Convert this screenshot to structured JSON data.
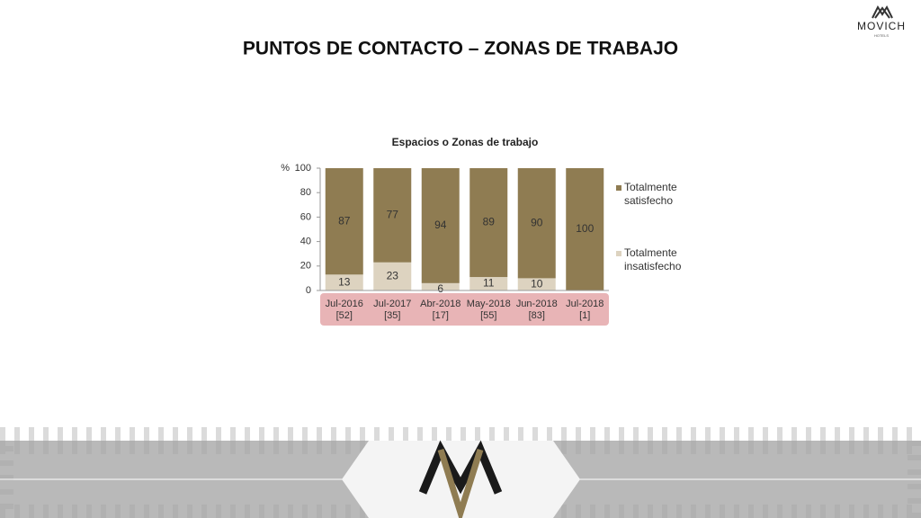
{
  "header": {
    "title": "PUNTOS DE CONTACTO – ZONAS DE TRABAJO",
    "logo": "MOVICH",
    "logo_sub": "HOTELS"
  },
  "chart_data": {
    "type": "bar",
    "stacked": true,
    "title": "Espacios o Zonas de trabajo",
    "ylabel": "%",
    "categories": [
      "Jul-2016",
      "Jul-2017",
      "Abr-2018",
      "May-2018",
      "Jun-2018",
      "Jul-2018"
    ],
    "category_counts": [
      "[52]",
      "[35]",
      "[17]",
      "[55]",
      "[83]",
      "[1]"
    ],
    "series": [
      {
        "name": "Totalmente satisfecho",
        "color": "#8f7c52",
        "values": [
          87,
          77,
          94,
          89,
          90,
          100
        ]
      },
      {
        "name": "Totalmente insatisfecho",
        "color": "#ddd3c0",
        "values": [
          13,
          23,
          6,
          11,
          10,
          0
        ]
      }
    ],
    "ylim": [
      0,
      100
    ],
    "yticks": [
      0,
      20,
      40,
      60,
      80,
      100
    ],
    "legend": "right"
  }
}
